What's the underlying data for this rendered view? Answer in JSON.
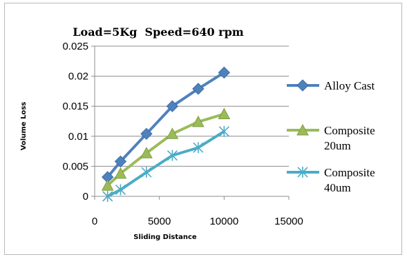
{
  "chart_data": {
    "type": "line",
    "title": "Load=5Kg  Speed=640 rpm",
    "xlabel": "Sliding Distance",
    "ylabel": "Volume Loss",
    "xlim": [
      0,
      15000
    ],
    "ylim": [
      0,
      0.025
    ],
    "x_ticks": [
      "0",
      "5000",
      "10000",
      "15000"
    ],
    "y_ticks": [
      "0",
      "0.005",
      "0.01",
      "0.015",
      "0.02",
      "0.025"
    ],
    "grid": "horizontal",
    "legend_position": "right",
    "x": [
      1000,
      2000,
      4000,
      6000,
      8000,
      10000
    ],
    "series": [
      {
        "name": "Alloy Cast",
        "lines": [
          "Alloy Cast"
        ],
        "marker": "diamond",
        "color": "#4f81bd",
        "values": [
          0.0032,
          0.0058,
          0.0104,
          0.015,
          0.0179,
          0.0206
        ]
      },
      {
        "name": "Composite 20um",
        "lines": [
          "Composite",
          "20um"
        ],
        "marker": "triangle",
        "color": "#9bbb59",
        "values": [
          0.0018,
          0.0038,
          0.0072,
          0.0104,
          0.0124,
          0.0137
        ]
      },
      {
        "name": "Composite 40um",
        "lines": [
          "Composite",
          "40um"
        ],
        "marker": "asterisk",
        "color": "#4bacc6",
        "values": [
          0.0,
          0.0011,
          0.004,
          0.0068,
          0.0081,
          0.0108
        ]
      }
    ]
  }
}
